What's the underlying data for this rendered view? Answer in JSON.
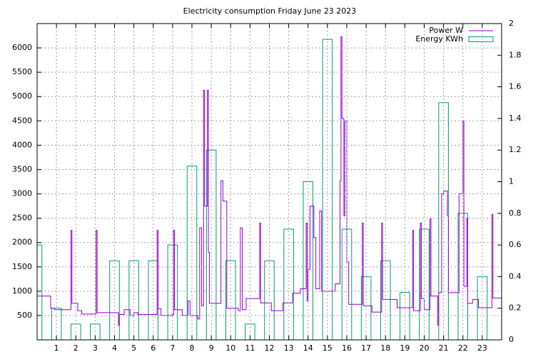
{
  "chart_data": {
    "type": "line",
    "title": "Electricity consumption Friday June 23 2023",
    "xlim": [
      0,
      24
    ],
    "xticks": [
      1,
      2,
      3,
      4,
      5,
      6,
      7,
      8,
      9,
      10,
      11,
      12,
      13,
      14,
      15,
      16,
      17,
      18,
      19,
      20,
      21,
      22,
      23
    ],
    "ylim": [
      0,
      6500
    ],
    "yticks": [
      500,
      1000,
      1500,
      2000,
      2500,
      3000,
      3500,
      4000,
      4500,
      5000,
      5500,
      6000
    ],
    "y2lim": [
      0,
      2
    ],
    "y2ticks": [
      0,
      0.2,
      0.4,
      0.6,
      0.8,
      1,
      1.2,
      1.4,
      1.6,
      1.8,
      2
    ],
    "grid": true,
    "legend": "top-right",
    "series": [
      {
        "name": "Power W",
        "color": "#9400d3",
        "style": "steps",
        "x": [
          0,
          0.6,
          0.7,
          0.9,
          1.7,
          1.75,
          1.8,
          2.1,
          2.3,
          3.0,
          3.05,
          3.1,
          4.0,
          4.2,
          4.25,
          4.5,
          4.8,
          5.0,
          5.2,
          6.0,
          6.2,
          6.25,
          6.4,
          7.0,
          7.05,
          7.1,
          7.5,
          7.8,
          7.9,
          8.3,
          8.4,
          8.5,
          8.6,
          8.65,
          8.8,
          8.85,
          8.9,
          9.5,
          9.6,
          9.8,
          10.4,
          10.5,
          10.6,
          10.8,
          11.5,
          11.55,
          12.1,
          12.7,
          13.2,
          13.6,
          13.9,
          13.95,
          14.0,
          14.1,
          14.3,
          14.4,
          14.6,
          14.7,
          15.4,
          15.65,
          15.7,
          15.75,
          15.85,
          15.9,
          16.0,
          16.1,
          16.8,
          16.85,
          17.3,
          17.8,
          17.85,
          18.6,
          19.4,
          19.45,
          19.8,
          19.85,
          20.0,
          20.3,
          20.35,
          20.7,
          20.75,
          20.9,
          21.0,
          21.2,
          21.25,
          21.8,
          22.0,
          22.05,
          22.2,
          22.25,
          22.5,
          22.8,
          23.5,
          23.55,
          24
        ],
        "values": [
          900,
          900,
          650,
          620,
          620,
          2250,
          750,
          600,
          530,
          530,
          2250,
          560,
          560,
          300,
          520,
          620,
          500,
          560,
          520,
          520,
          2250,
          640,
          500,
          520,
          2250,
          620,
          500,
          800,
          500,
          430,
          2300,
          700,
          5130,
          2750,
          5130,
          1800,
          750,
          3270,
          2850,
          650,
          600,
          2300,
          620,
          850,
          2400,
          760,
          600,
          760,
          960,
          1050,
          2400,
          800,
          1450,
          2750,
          2100,
          1050,
          2650,
          1000,
          1150,
          3270,
          6230,
          4550,
          2550,
          4500,
          1600,
          730,
          2400,
          700,
          570,
          2400,
          830,
          660,
          2250,
          600,
          2400,
          850,
          620,
          2500,
          900,
          300,
          970,
          3000,
          3060,
          2550,
          970,
          3000,
          4500,
          1100,
          2500,
          750,
          830,
          660,
          2580,
          860,
          860
        ]
      },
      {
        "name": "Energy KWh",
        "color": "#009e73",
        "style": "boxes",
        "axis": "y2",
        "x": [
          0,
          1,
          2,
          3,
          4,
          5,
          6,
          7,
          8,
          9,
          10,
          11,
          12,
          13,
          14,
          15,
          16,
          17,
          18,
          19,
          20,
          21,
          22,
          23
        ],
        "values": [
          0.6,
          0.2,
          0.1,
          0.1,
          0.5,
          0.5,
          0.5,
          0.6,
          1.1,
          1.2,
          0.5,
          0.1,
          0.5,
          0.7,
          1.0,
          1.9,
          0.7,
          0.4,
          0.5,
          0.3,
          0.7,
          1.5,
          0.8,
          0.4
        ]
      }
    ]
  }
}
